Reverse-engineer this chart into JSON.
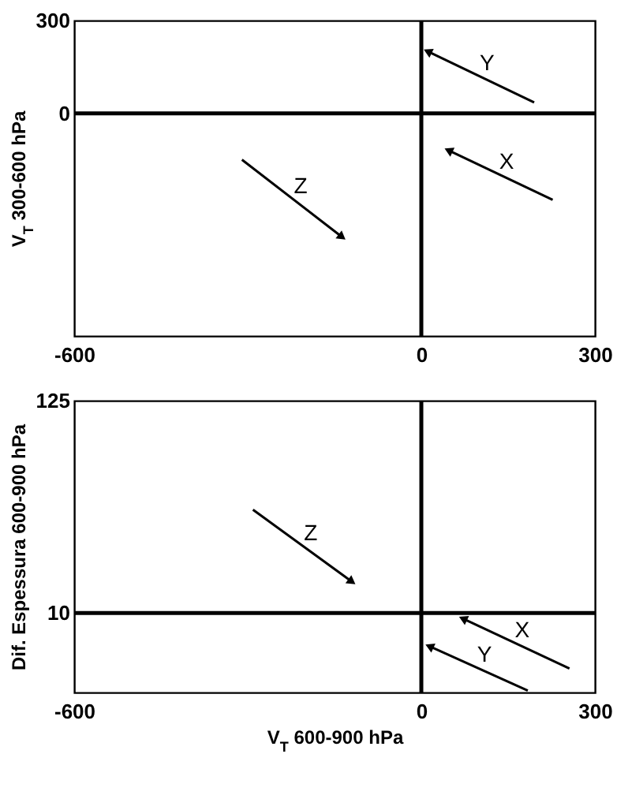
{
  "chart_data": [
    {
      "type": "line",
      "ylabel": "V$_{T}$ 300-600 hPa",
      "xlim": [
        -600,
        300
      ],
      "ylim": [
        -720,
        300
      ],
      "xticks": [
        -600,
        0,
        300
      ],
      "yticks": [
        0,
        300
      ],
      "series": [
        {
          "name": "Y",
          "color": "#000000",
          "x": [
            195,
            11
          ],
          "values": [
            35,
            200
          ]
        },
        {
          "name": "X",
          "color": "#000000",
          "x": [
            227,
            47
          ],
          "values": [
            -280,
            -120
          ]
        },
        {
          "name": "Z",
          "color": "#000000",
          "x": [
            -310,
            -137
          ],
          "values": [
            -150,
            -400
          ]
        }
      ],
      "ref_lines": [
        {
          "axis": "x",
          "value": 0,
          "color": "#000000"
        },
        {
          "axis": "y",
          "value": 0,
          "color": "#000000"
        }
      ]
    },
    {
      "type": "line",
      "xlabel": "V$_{T}$ 600-900 hPa",
      "ylabel": "Dif. Espessura 600-900 hPa",
      "xlim": [
        -600,
        300
      ],
      "ylim": [
        -33,
        125
      ],
      "xticks": [
        -600,
        0,
        300
      ],
      "yticks": [
        10,
        125
      ],
      "series": [
        {
          "name": "Z",
          "color": "#000000",
          "x": [
            -291,
            -120
          ],
          "values": [
            66,
            27
          ]
        },
        {
          "name": "X",
          "color": "#000000",
          "x": [
            256,
            72
          ],
          "values": [
            -20,
            7
          ]
        },
        {
          "name": "Y",
          "color": "#000000",
          "x": [
            184,
            14
          ],
          "values": [
            -32,
            -8
          ]
        }
      ],
      "ref_lines": [
        {
          "axis": "x",
          "value": 0,
          "color": "#000000"
        },
        {
          "axis": "y",
          "value": 10,
          "color": "#000000"
        }
      ]
    }
  ]
}
